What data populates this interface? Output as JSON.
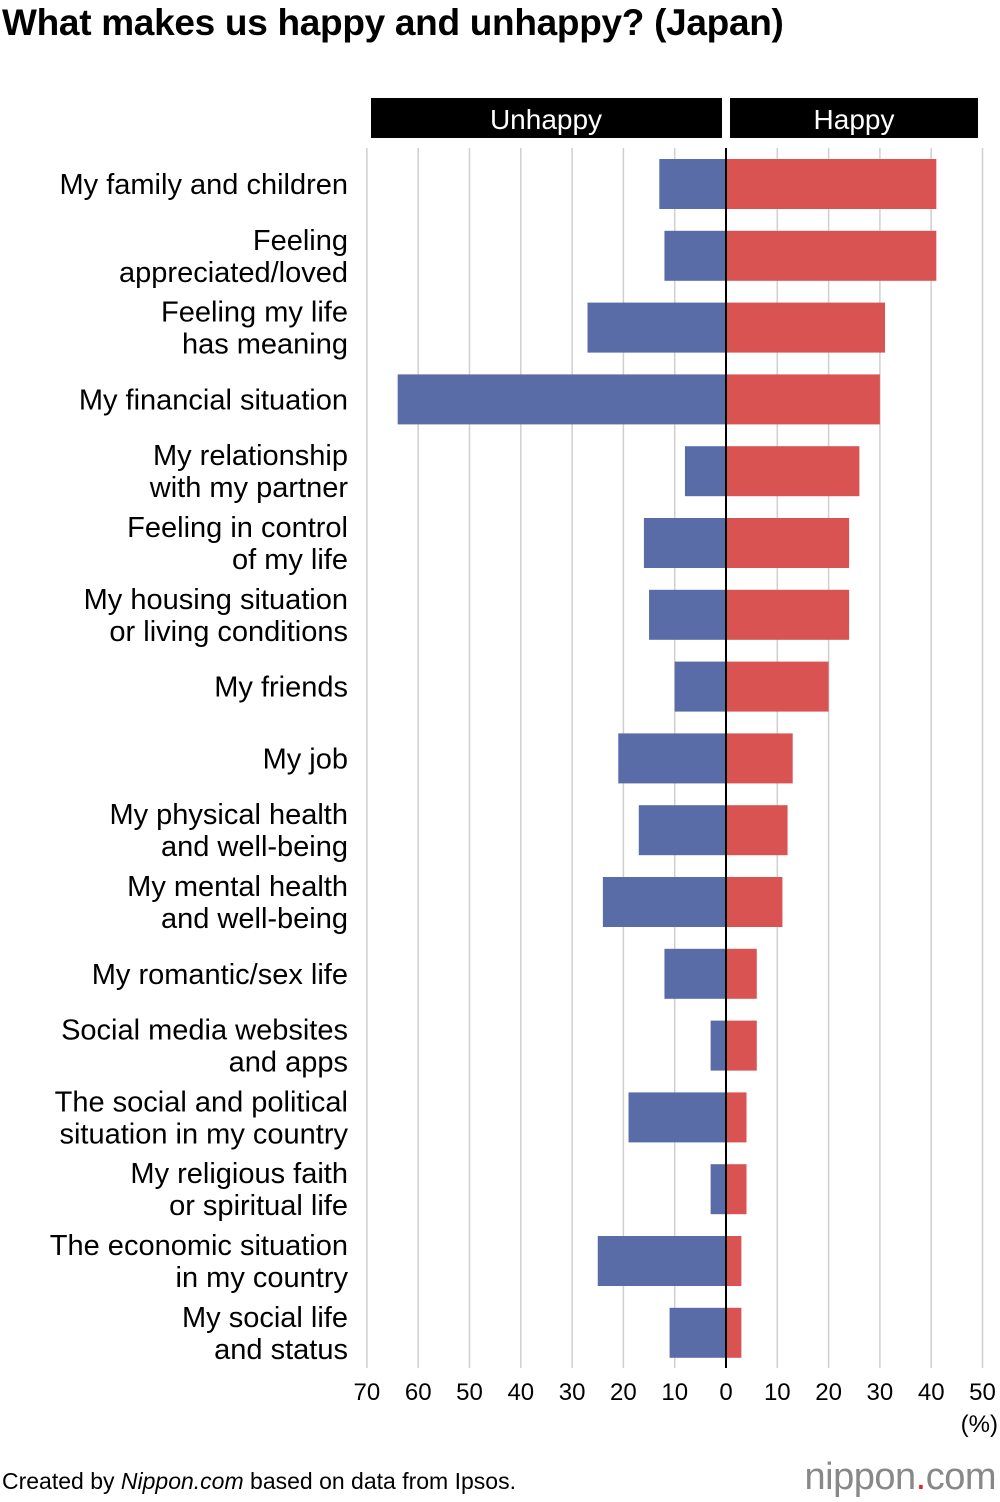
{
  "title": "What makes us happy and unhappy? (Japan)",
  "footer": {
    "prefix": "Created by ",
    "source_site": "Nippon.com",
    "suffix": " based on data from Ipsos."
  },
  "logo": {
    "text_a": "nippon",
    "dot": ".",
    "text_b": "com"
  },
  "chart_data": {
    "type": "bar",
    "orientation": "horizontal-diverging",
    "unit_label": "(%)",
    "panel_headers": [
      "Unhappy",
      "Happy"
    ],
    "categories": [
      [
        "My family and children"
      ],
      [
        "Feeling",
        "appreciated/loved"
      ],
      [
        "Feeling my life",
        "has meaning"
      ],
      [
        "My financial situation"
      ],
      [
        "My relationship",
        "with my partner"
      ],
      [
        "Feeling in control",
        "of my life"
      ],
      [
        "My housing situation",
        "or living conditions"
      ],
      [
        "My friends"
      ],
      [
        "My job"
      ],
      [
        "My physical health",
        "and well-being"
      ],
      [
        "My mental health",
        "and well-being"
      ],
      [
        "My romantic/sex life"
      ],
      [
        "Social media websites",
        "and apps"
      ],
      [
        "The social and political",
        "situation in my country"
      ],
      [
        "My religious faith",
        "or spiritual life"
      ],
      [
        "The economic situation",
        "in my country"
      ],
      [
        "My social life",
        "and status"
      ]
    ],
    "series": [
      {
        "name": "Unhappy",
        "color": "#5a6ca8",
        "values": [
          13,
          12,
          27,
          64,
          8,
          16,
          15,
          10,
          21,
          17,
          24,
          12,
          3,
          19,
          3,
          25,
          11
        ]
      },
      {
        "name": "Happy",
        "color": "#d95353",
        "values": [
          41,
          41,
          31,
          30,
          26,
          24,
          24,
          20,
          13,
          12,
          11,
          6,
          6,
          4,
          4,
          3,
          3
        ]
      }
    ],
    "x_ticks_left": [
      70,
      60,
      50,
      40,
      30,
      20,
      10,
      0
    ],
    "x_ticks_right": [
      10,
      20,
      30,
      40,
      50
    ],
    "xlim_unhappy": [
      0,
      70
    ],
    "xlim_happy": [
      0,
      50
    ],
    "grid": true
  }
}
